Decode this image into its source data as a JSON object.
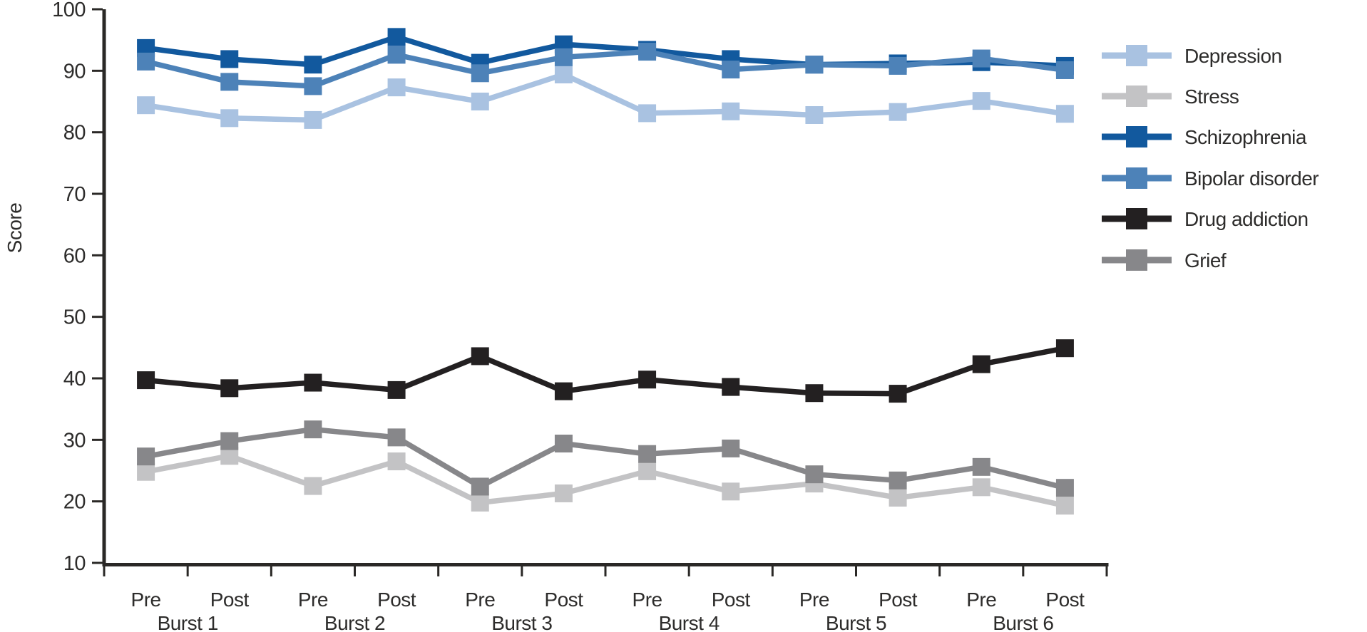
{
  "figure": {
    "ylabel": "Score",
    "y_ticks": [
      10,
      20,
      30,
      40,
      50,
      60,
      70,
      80,
      90,
      100
    ],
    "point_labels": [
      "Pre",
      "Post"
    ],
    "burst_labels": [
      "Burst 1",
      "Burst 2",
      "Burst 3",
      "Burst 4",
      "Burst 5",
      "Burst 6"
    ],
    "axis_color": "#2a2826",
    "text_color": "#2d2c2b"
  },
  "chart_data": {
    "type": "line",
    "title": "",
    "xlabel": "",
    "ylabel": "Score",
    "ylim": [
      10,
      100
    ],
    "grid": false,
    "legend_position": "right",
    "marker": "square",
    "bursts": [
      "Burst 1",
      "Burst 2",
      "Burst 3",
      "Burst 4",
      "Burst 5",
      "Burst 6"
    ],
    "timepoints": [
      "Pre",
      "Post"
    ],
    "categories": [
      "Burst 1 Pre",
      "Burst 1 Post",
      "Burst 2 Pre",
      "Burst 2 Post",
      "Burst 3 Pre",
      "Burst 3 Post",
      "Burst 4 Pre",
      "Burst 4 Post",
      "Burst 5 Pre",
      "Burst 5 Post",
      "Burst 6 Pre",
      "Burst 6 Post"
    ],
    "series": [
      {
        "name": "Depression",
        "color": "#a9c2e1",
        "values": [
          84.4,
          82.3,
          82.0,
          87.3,
          85.0,
          89.4,
          83.1,
          83.4,
          82.8,
          83.3,
          85.1,
          83.0
        ]
      },
      {
        "name": "Stress",
        "color": "#c3c3c5",
        "values": [
          24.8,
          27.4,
          22.5,
          26.5,
          19.8,
          21.3,
          24.9,
          21.6,
          22.9,
          20.6,
          22.3,
          19.3
        ]
      },
      {
        "name": "Schizophrenia",
        "color": "#12599e",
        "values": [
          93.7,
          91.9,
          91.0,
          95.5,
          91.3,
          94.3,
          93.4,
          91.9,
          91.0,
          91.2,
          91.4,
          90.8
        ]
      },
      {
        "name": "Bipolar disorder",
        "color": "#4d82b8",
        "values": [
          91.5,
          88.2,
          87.5,
          92.6,
          89.6,
          92.2,
          93.1,
          90.2,
          91.0,
          90.8,
          92.0,
          90.1
        ]
      },
      {
        "name": "Drug addiction",
        "color": "#232021",
        "values": [
          39.7,
          38.4,
          39.3,
          38.1,
          43.6,
          37.9,
          39.8,
          38.6,
          37.6,
          37.5,
          42.3,
          44.9
        ]
      },
      {
        "name": "Grief",
        "color": "#87878a",
        "values": [
          27.3,
          29.8,
          31.7,
          30.4,
          22.4,
          29.4,
          27.7,
          28.6,
          24.4,
          23.4,
          25.6,
          22.2
        ]
      }
    ]
  }
}
